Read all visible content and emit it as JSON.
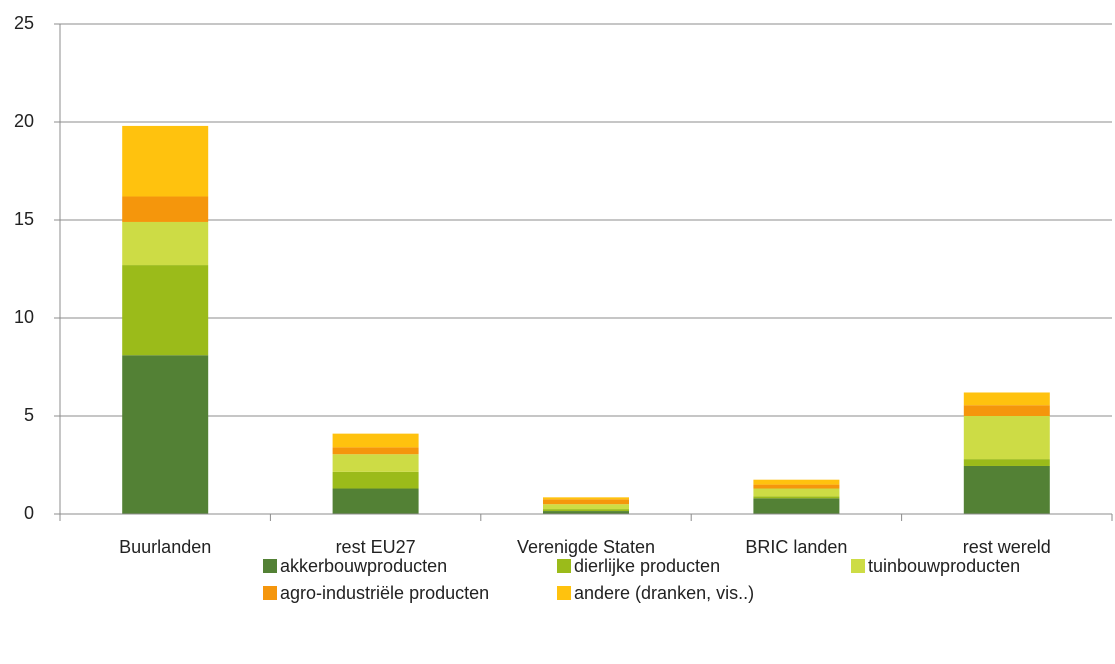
{
  "chart_data": {
    "type": "stacked_bar",
    "categories": [
      "Buurlanden",
      "rest EU27",
      "Verenigde Staten",
      "BRIC landen",
      "rest wereld"
    ],
    "series": [
      {
        "name": "akkerbouwproducten",
        "color": "#538135",
        "values": [
          8.1,
          1.3,
          0.15,
          0.8,
          2.45
        ]
      },
      {
        "name": "dierlijke producten",
        "color": "#9bbb1a",
        "values": [
          4.6,
          0.85,
          0.1,
          0.1,
          0.35
        ]
      },
      {
        "name": "tuinbouwproducten",
        "color": "#cddc45",
        "values": [
          2.2,
          0.9,
          0.25,
          0.4,
          2.2
        ]
      },
      {
        "name": "agro-industriële producten",
        "color": "#f5960c",
        "values": [
          1.3,
          0.35,
          0.25,
          0.2,
          0.55
        ]
      },
      {
        "name": "andere (dranken, vis..)",
        "color": "#ffc20e",
        "values": [
          3.6,
          0.7,
          0.1,
          0.25,
          0.65
        ]
      }
    ],
    "ylim": [
      0,
      25
    ],
    "yticks": [
      0,
      5,
      10,
      15,
      20,
      25
    ],
    "grid": true,
    "legend": "bottom"
  }
}
